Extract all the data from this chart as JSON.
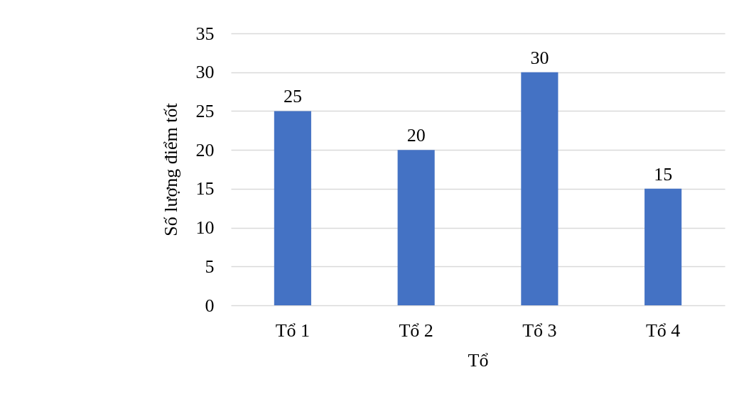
{
  "chart_data": {
    "type": "bar",
    "xlabel": "Tổ",
    "ylabel": "Số lượng điểm tốt",
    "categories": [
      "Tổ 1",
      "Tổ 2",
      "Tổ 3",
      "Tổ 4"
    ],
    "values": [
      25,
      20,
      30,
      15
    ],
    "color": "#4472c4",
    "ylim": [
      0,
      35
    ],
    "yticks": [
      0,
      5,
      10,
      15,
      20,
      25,
      30,
      35
    ],
    "grid": "y",
    "data_labels": true
  }
}
